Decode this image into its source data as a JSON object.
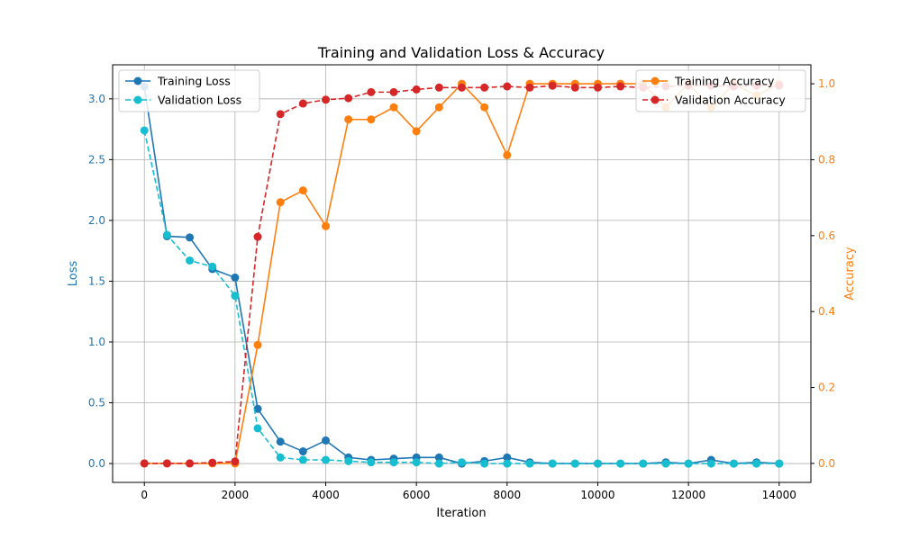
{
  "chart_data": {
    "type": "line",
    "title": "Training and Validation Loss & Accuracy",
    "xlabel": "Iteration",
    "ylabel_left": "Loss",
    "ylabel_right": "Accuracy",
    "colors": {
      "training_loss": "#1f77b4",
      "validation_loss": "#17becf",
      "training_accuracy": "#ff7f0e",
      "validation_accuracy": "#d62728",
      "grid": "#b0b0b0",
      "left_axis_text": "#1f77b4",
      "right_axis_text": "#ff7f0e"
    },
    "grid": true,
    "xlim": [
      -700,
      14700
    ],
    "ylim_left": [
      -0.155,
      3.28
    ],
    "ylim_right": [
      -0.05,
      1.05
    ],
    "x_ticks": [
      0,
      2000,
      4000,
      6000,
      8000,
      10000,
      12000,
      14000
    ],
    "y_left_ticks": [
      0.0,
      0.5,
      1.0,
      1.5,
      2.0,
      2.5,
      3.0
    ],
    "y_right_ticks": [
      0.0,
      0.2,
      0.4,
      0.6,
      0.8,
      1.0
    ],
    "legend_left_position": "upper-left",
    "legend_right_position": "upper-right",
    "x": [
      0,
      500,
      1000,
      1500,
      2000,
      2500,
      3000,
      3500,
      4000,
      4500,
      5000,
      5500,
      6000,
      6500,
      7000,
      7500,
      8000,
      8500,
      9000,
      9500,
      10000,
      10500,
      11000,
      11500,
      12000,
      12500,
      13000,
      13500,
      14000
    ],
    "series": [
      {
        "name": "Training Loss",
        "axis": "left",
        "style": "solid",
        "color": "#1f77b4",
        "values": [
          3.1,
          1.87,
          1.86,
          1.6,
          1.53,
          0.45,
          0.18,
          0.1,
          0.19,
          0.05,
          0.03,
          0.04,
          0.05,
          0.05,
          0.0,
          0.02,
          0.05,
          0.01,
          0.0,
          0.0,
          0.0,
          0.0,
          0.0,
          0.01,
          0.0,
          0.03,
          0.0,
          0.01,
          0.0
        ]
      },
      {
        "name": "Validation Loss",
        "axis": "left",
        "style": "dashed",
        "color": "#17becf",
        "values": [
          2.74,
          1.88,
          1.67,
          1.62,
          1.38,
          0.29,
          0.05,
          0.03,
          0.03,
          0.02,
          0.01,
          0.01,
          0.01,
          0.0,
          0.01,
          0.0,
          0.0,
          0.0,
          0.0,
          0.0,
          0.0,
          0.0,
          0.0,
          0.0,
          0.0,
          0.0,
          0.0,
          0.0,
          0.0
        ]
      },
      {
        "name": "Training Accuracy",
        "axis": "right",
        "style": "solid",
        "color": "#ff7f0e",
        "values": [
          0.0,
          0.0,
          0.0,
          0.0,
          0.0,
          0.312,
          0.688,
          0.719,
          0.625,
          0.906,
          0.906,
          0.938,
          0.875,
          0.938,
          1.0,
          0.938,
          0.812,
          1.0,
          1.0,
          1.0,
          1.0,
          1.0,
          1.0,
          0.938,
          1.0,
          0.938,
          1.0,
          0.969,
          1.0
        ]
      },
      {
        "name": "Validation Accuracy",
        "axis": "right",
        "style": "dashed",
        "color": "#d62728",
        "values": [
          0.0,
          0.0,
          0.0,
          0.002,
          0.005,
          0.597,
          0.92,
          0.948,
          0.958,
          0.962,
          0.978,
          0.978,
          0.985,
          0.99,
          0.99,
          0.99,
          0.993,
          0.99,
          0.995,
          0.99,
          0.99,
          0.993,
          0.99,
          0.993,
          0.995,
          0.995,
          0.993,
          0.995,
          0.995
        ]
      }
    ]
  }
}
